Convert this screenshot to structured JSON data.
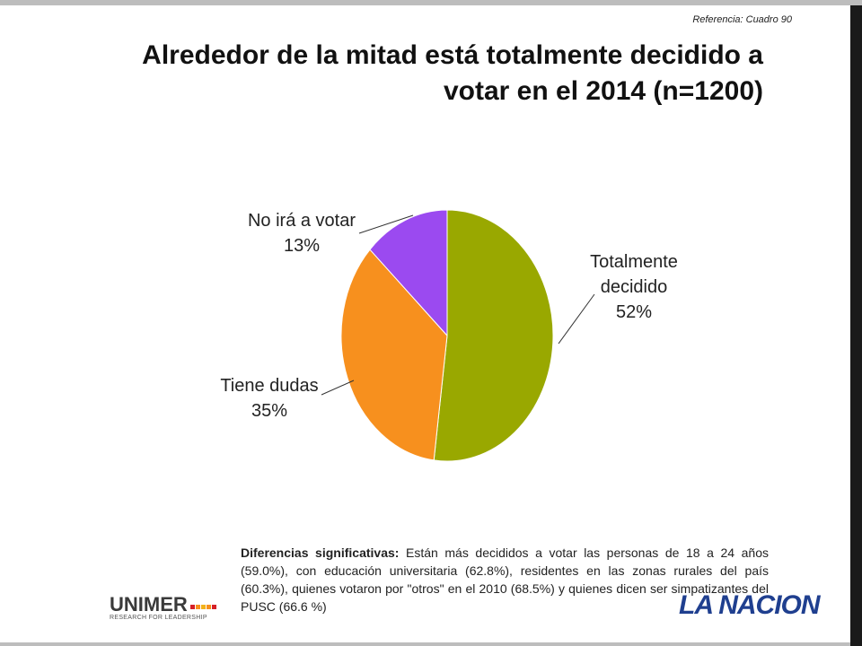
{
  "reference": "Referencia: Cuadro 90",
  "title_line1": "Alrededor de la mitad está totalmente decidido a",
  "title_line2": "votar en el 2014 (n=1200)",
  "chart_data": {
    "type": "pie",
    "title": "Alrededor de la mitad está totalmente decidido a votar en el 2014 (n=1200)",
    "slices": [
      {
        "label": [
          "Totalmente",
          "decidido"
        ],
        "value": 52,
        "value_label": "52%",
        "color": "#99a800"
      },
      {
        "label": [
          "Tiene dudas"
        ],
        "value": 35,
        "value_label": "35%",
        "color": "#f7901e"
      },
      {
        "label": [
          "No irá a votar"
        ],
        "value": 13,
        "value_label": "13%",
        "color": "#9b4af0"
      }
    ]
  },
  "note": {
    "lead": "Diferencias significativas:",
    "text": " Están más decididos a votar las personas de 18 a 24 años (59.0%), con educación universitaria (62.8%), residentes en las zonas rurales del país (60.3%), quienes votaron por \"otros\" en el 2010 (68.5%) y quienes dicen ser simpatizantes del PUSC (66.6 %)"
  },
  "logos": {
    "unimer": "UNIMER",
    "unimer_tagline": "RESEARCH FOR LEADERSHIP",
    "nacion": "LA NACION"
  },
  "colors": {
    "unimer_dots": [
      "#d62027",
      "#f7901e",
      "#f2b21b",
      "#f7901e",
      "#d62027"
    ]
  }
}
